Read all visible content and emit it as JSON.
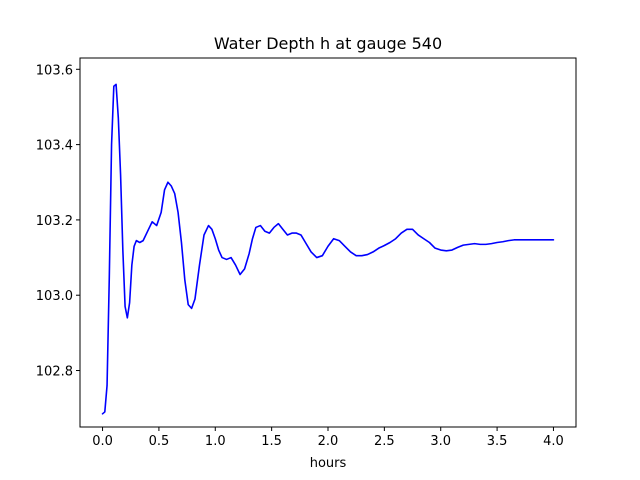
{
  "chart_data": {
    "type": "line",
    "title": "Water Depth h at gauge 540",
    "xlabel": "hours",
    "ylabel": "",
    "xlim": [
      -0.2,
      4.2
    ],
    "ylim": [
      102.65,
      103.63
    ],
    "xticks": [
      0.0,
      0.5,
      1.0,
      1.5,
      2.0,
      2.5,
      3.0,
      3.5,
      4.0
    ],
    "xtick_labels": [
      "0.0",
      "0.5",
      "1.0",
      "1.5",
      "2.0",
      "2.5",
      "3.0",
      "3.5",
      "4.0"
    ],
    "yticks": [
      102.8,
      103.0,
      103.2,
      103.4,
      103.6
    ],
    "ytick_labels": [
      "102.8",
      "103.0",
      "103.2",
      "103.4",
      "103.6"
    ],
    "grid": false,
    "series": [
      {
        "color": "#0000ff",
        "x": [
          0.0,
          0.02,
          0.04,
          0.06,
          0.08,
          0.1,
          0.12,
          0.14,
          0.16,
          0.18,
          0.2,
          0.22,
          0.24,
          0.26,
          0.28,
          0.3,
          0.33,
          0.36,
          0.4,
          0.44,
          0.48,
          0.52,
          0.55,
          0.58,
          0.61,
          0.64,
          0.67,
          0.7,
          0.73,
          0.76,
          0.79,
          0.82,
          0.86,
          0.9,
          0.94,
          0.97,
          1.0,
          1.03,
          1.06,
          1.1,
          1.14,
          1.18,
          1.22,
          1.26,
          1.3,
          1.33,
          1.36,
          1.4,
          1.44,
          1.48,
          1.52,
          1.56,
          1.6,
          1.64,
          1.68,
          1.72,
          1.76,
          1.8,
          1.85,
          1.9,
          1.95,
          2.0,
          2.05,
          2.1,
          2.15,
          2.2,
          2.25,
          2.3,
          2.35,
          2.4,
          2.45,
          2.5,
          2.55,
          2.6,
          2.65,
          2.7,
          2.75,
          2.8,
          2.85,
          2.9,
          2.95,
          3.0,
          3.05,
          3.1,
          3.15,
          3.2,
          3.25,
          3.3,
          3.35,
          3.4,
          3.45,
          3.5,
          3.55,
          3.6,
          3.65,
          3.7,
          3.75,
          3.8,
          3.85,
          3.9,
          3.95,
          4.0
        ],
        "y": [
          102.685,
          102.69,
          102.76,
          103.05,
          103.4,
          103.555,
          103.56,
          103.47,
          103.32,
          103.12,
          102.97,
          102.94,
          102.98,
          103.08,
          103.13,
          103.145,
          103.14,
          103.145,
          103.17,
          103.195,
          103.185,
          103.22,
          103.28,
          103.3,
          103.29,
          103.27,
          103.22,
          103.14,
          103.04,
          102.975,
          102.965,
          102.99,
          103.08,
          103.16,
          103.185,
          103.175,
          103.15,
          103.12,
          103.1,
          103.095,
          103.1,
          103.08,
          103.055,
          103.07,
          103.11,
          103.15,
          103.18,
          103.185,
          103.17,
          103.165,
          103.18,
          103.19,
          103.175,
          103.16,
          103.165,
          103.165,
          103.16,
          103.14,
          103.115,
          103.1,
          103.105,
          103.13,
          103.15,
          103.145,
          103.13,
          103.115,
          103.105,
          103.105,
          103.108,
          103.115,
          103.125,
          103.132,
          103.14,
          103.15,
          103.165,
          103.175,
          103.175,
          103.16,
          103.15,
          103.14,
          103.125,
          103.12,
          103.118,
          103.12,
          103.127,
          103.133,
          103.135,
          103.137,
          103.135,
          103.135,
          103.137,
          103.14,
          103.142,
          103.145,
          103.147,
          103.147,
          103.147,
          103.147,
          103.147,
          103.147,
          103.147,
          103.147
        ]
      }
    ]
  }
}
